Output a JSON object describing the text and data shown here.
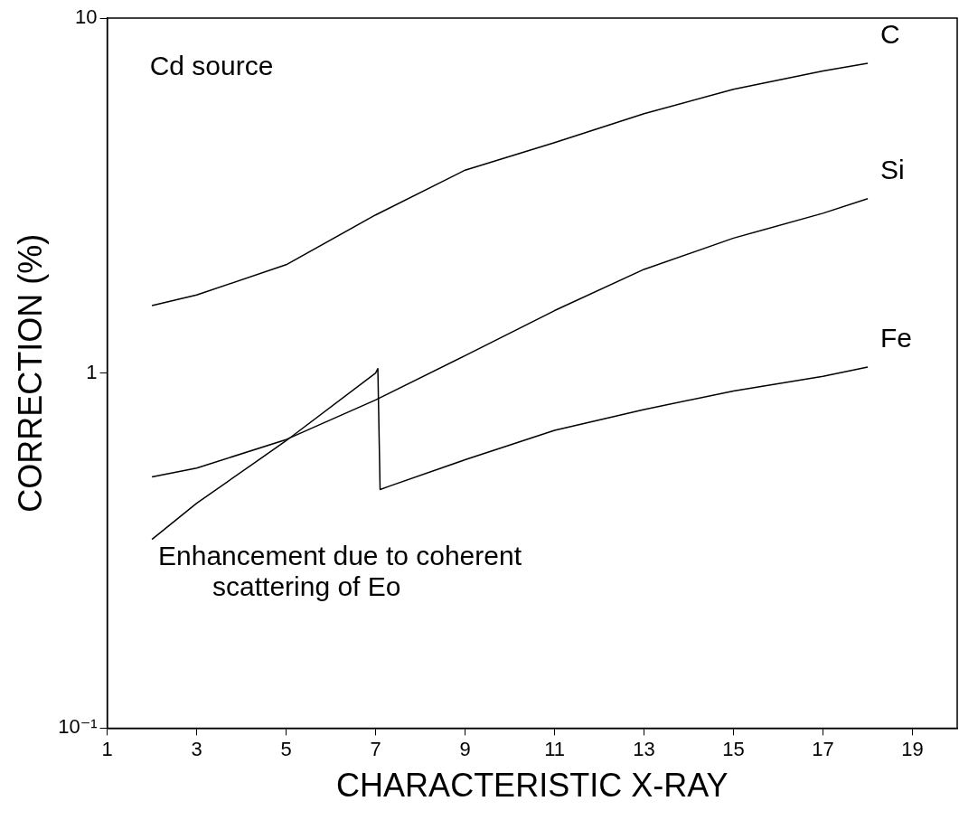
{
  "chart_data": {
    "type": "line",
    "xlabel": "CHARACTERISTIC X-RAY",
    "ylabel": "CORRECTION (%)",
    "log": "y",
    "grid": false,
    "legend": false,
    "marker": "none",
    "line_style": "solid",
    "xlim": [
      1,
      20
    ],
    "xticks": [
      1,
      3,
      5,
      7,
      9,
      11,
      13,
      15,
      17,
      19
    ],
    "ylim": [
      0.1,
      10
    ],
    "yticks": [
      {
        "value": 0.1,
        "label": "10⁻¹"
      },
      1,
      10
    ],
    "annotations": [
      "Cd source",
      "Enhancement due to coherent\nscattering of Eo"
    ],
    "series": [
      {
        "name": "C",
        "color": "#000000",
        "x": [
          2,
          3,
          5,
          7,
          9,
          11,
          13,
          15,
          17,
          18
        ],
        "values": [
          1.55,
          1.66,
          2.02,
          2.79,
          3.73,
          4.46,
          5.38,
          6.3,
          7.1,
          7.46
        ]
      },
      {
        "name": "Si",
        "color": "#000000",
        "x": [
          2,
          3,
          5,
          7,
          9,
          11,
          13,
          15,
          17,
          18
        ],
        "values": [
          0.51,
          0.54,
          0.65,
          0.84,
          1.12,
          1.5,
          1.96,
          2.4,
          2.82,
          3.1
        ]
      },
      {
        "name": "Fe",
        "color": "#000000",
        "x": [
          2,
          3,
          5,
          7,
          7.05,
          7.1,
          7.3,
          9,
          11,
          13,
          15,
          17,
          18
        ],
        "values": [
          0.34,
          0.43,
          0.645,
          1.0,
          1.03,
          0.47,
          0.48,
          0.57,
          0.69,
          0.79,
          0.89,
          0.98,
          1.04
        ]
      }
    ]
  }
}
